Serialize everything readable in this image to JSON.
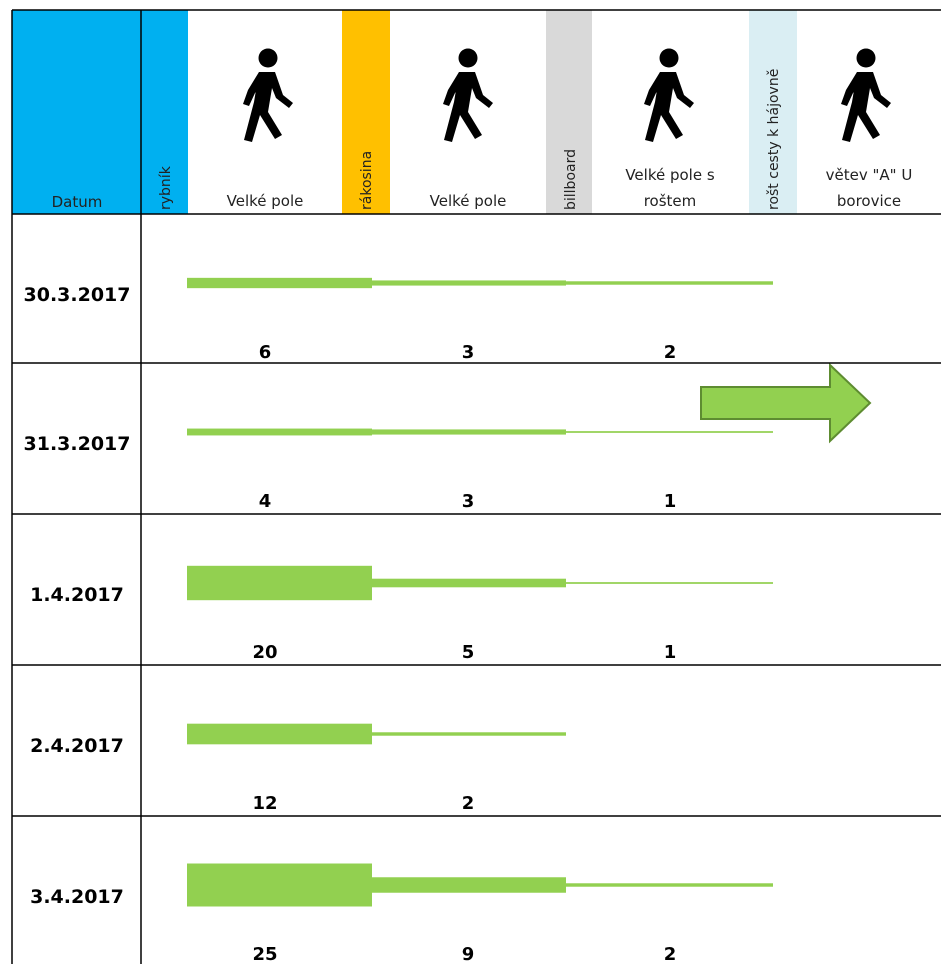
{
  "header": {
    "date_label": "Datum",
    "columns": [
      {
        "type": "marker",
        "label": "rybník",
        "color": "#00B0F0"
      },
      {
        "type": "location",
        "lines": [
          "Velké pole"
        ],
        "icon": "walking-person-icon"
      },
      {
        "type": "marker",
        "label": "rákosina",
        "color": "#FFC000"
      },
      {
        "type": "location",
        "lines": [
          "Velké pole"
        ],
        "icon": "walking-person-icon"
      },
      {
        "type": "marker",
        "label": "billboard",
        "color": "#D9D9D9"
      },
      {
        "type": "location",
        "lines": [
          "Velké pole s",
          "roštem"
        ],
        "icon": "walking-person-icon"
      },
      {
        "type": "marker",
        "label": "rošt cesty k hájovně",
        "color": "#DAEEF3"
      },
      {
        "type": "location",
        "lines": [
          "větev \"A\" U",
          "borovice"
        ],
        "icon": "walking-person-icon"
      }
    ]
  },
  "colors": {
    "header_date_bg": "#00B0F0",
    "flow": "#92D050",
    "arrow_stroke": "#5E8C31",
    "grid": "#000000"
  },
  "chart_data": {
    "type": "table",
    "stages": [
      "Velké pole",
      "Velké pole",
      "Velké pole s roštem"
    ],
    "rows": [
      {
        "date": "30.3.2017",
        "counts": [
          6,
          3,
          2
        ]
      },
      {
        "date": "31.3.2017",
        "counts": [
          4,
          3,
          1
        ]
      },
      {
        "date": "1.4.2017",
        "counts": [
          20,
          5,
          1
        ]
      },
      {
        "date": "2.4.2017",
        "counts": [
          12,
          2
        ]
      },
      {
        "date": "3.4.2017",
        "counts": [
          25,
          9,
          2
        ]
      }
    ],
    "continuation_arrow_row": 1
  }
}
